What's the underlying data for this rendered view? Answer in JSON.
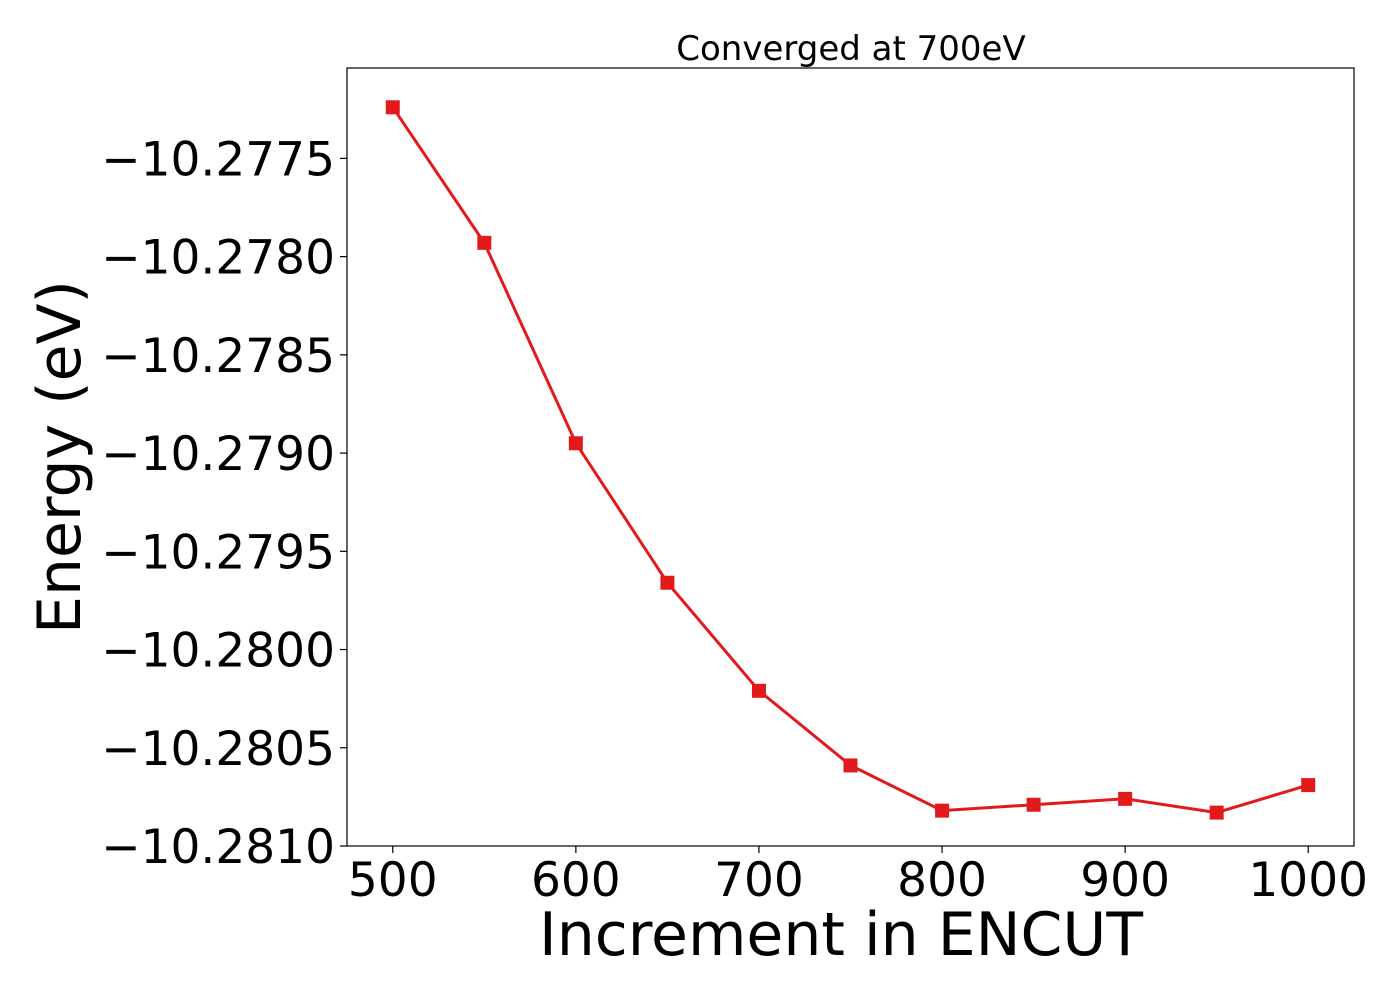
{
  "chart_data": {
    "type": "line",
    "title": "Converged at 700eV",
    "xlabel": "Increment in ENCUT",
    "ylabel": "Energy (eV)",
    "x": [
      500,
      550,
      600,
      650,
      700,
      750,
      800,
      850,
      900,
      950,
      1000
    ],
    "series": [
      {
        "values": [
          -10.27724,
          -10.27793,
          -10.27895,
          -10.27966,
          -10.28021,
          -10.28059,
          -10.28082,
          -10.28079,
          -10.28076,
          -10.28083,
          -10.28069
        ],
        "color": "#e31a1c",
        "marker": "square"
      }
    ],
    "xticks": [
      500,
      600,
      700,
      800,
      900,
      1000
    ],
    "xtick_labels": [
      "500",
      "600",
      "700",
      "800",
      "900",
      "1000"
    ],
    "yticks": [
      -10.2775,
      -10.278,
      -10.2785,
      -10.279,
      -10.2795,
      -10.28,
      -10.2805,
      -10.281
    ],
    "ytick_labels": [
      "−10.2775",
      "−10.2780",
      "−10.2785",
      "−10.2790",
      "−10.2795",
      "−10.2800",
      "−10.2805",
      "−10.2810"
    ],
    "xlim": [
      475,
      1025
    ],
    "ylim": [
      -10.281,
      -10.27704
    ],
    "grid": false,
    "legend": "none"
  }
}
